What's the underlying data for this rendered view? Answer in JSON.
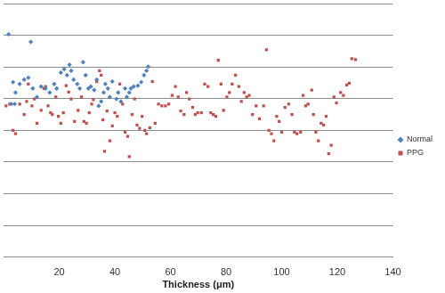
{
  "chart_data": {
    "type": "scatter",
    "x_label": "Thickness (μm)",
    "xlim": [
      0,
      140
    ],
    "xticks": [
      20,
      40,
      60,
      80,
      100,
      120,
      140
    ],
    "ylim": [
      0,
      8
    ],
    "yticks": [
      0,
      1,
      2,
      3,
      4,
      5,
      6,
      7,
      8
    ],
    "tick_labels": "x",
    "grid": true,
    "legend": "right",
    "series": [
      {
        "name": "Normal",
        "color": "#4f81bd",
        "marker": "diamond",
        "x": [
          1.8,
          9.8,
          3.4,
          4.3,
          2.8,
          5.8,
          7.4,
          8.9,
          10.5,
          12.0,
          13.5,
          15.1,
          16.6,
          18.2,
          19.1,
          20.6,
          21.8,
          22.8,
          23.7,
          24.3,
          25.2,
          26.5,
          27.4,
          28.6,
          29.5,
          30.5,
          31.4,
          32.6,
          33.5,
          34.2,
          35.1,
          36.0,
          36.6,
          37.5,
          38.2,
          39.1,
          40.6,
          41.2,
          42.2,
          43.7,
          44.3,
          45.2,
          45.8,
          46.8,
          48.3,
          49.5,
          50.5,
          51.4,
          52.0,
          4.0
        ],
        "values": [
          7.03,
          6.79,
          5.52,
          5.19,
          4.83,
          5.46,
          5.6,
          5.66,
          5.32,
          5.05,
          5.38,
          5.32,
          5.19,
          5.46,
          5.32,
          5.82,
          5.93,
          5.74,
          6.07,
          5.88,
          5.6,
          5.46,
          5.32,
          6.15,
          5.74,
          5.32,
          5.38,
          5.27,
          5.6,
          4.77,
          4.91,
          5.19,
          5.46,
          5.32,
          5.05,
          5.54,
          4.99,
          5.19,
          4.91,
          5.32,
          5.05,
          5.19,
          5.32,
          5.38,
          5.41,
          5.52,
          5.74,
          5.88,
          6.01,
          4.83
        ]
      },
      {
        "name": "PPG",
        "color": "#c0504d",
        "marker": "square",
        "x": [
          0.9,
          2.2,
          3.4,
          4.3,
          5.8,
          7.4,
          8.3,
          8.9,
          10.2,
          11.1,
          12.0,
          13.5,
          14.5,
          15.1,
          16.0,
          16.9,
          17.5,
          18.8,
          19.7,
          20.6,
          21.5,
          22.5,
          23.4,
          24.3,
          25.5,
          26.8,
          28.0,
          28.9,
          29.8,
          30.8,
          31.7,
          32.3,
          33.5,
          34.5,
          35.1,
          35.7,
          36.3,
          37.2,
          38.2,
          39.1,
          40.0,
          40.9,
          41.8,
          42.8,
          43.7,
          44.6,
          45.2,
          46.2,
          47.1,
          48.0,
          48.9,
          49.8,
          50.8,
          51.4,
          52.6,
          53.5,
          54.5,
          55.7,
          56.9,
          58.2,
          59.4,
          60.6,
          61.8,
          62.8,
          63.7,
          64.9,
          65.8,
          66.8,
          68.0,
          68.9,
          69.8,
          71.1,
          72.3,
          73.5,
          74.5,
          75.4,
          76.3,
          77.2,
          78.2,
          79.1,
          80.3,
          81.2,
          82.2,
          83.4,
          84.6,
          85.5,
          86.5,
          87.4,
          88.3,
          89.5,
          90.8,
          92.0,
          93.5,
          94.5,
          95.4,
          96.3,
          97.2,
          98.2,
          99.1,
          100.0,
          101.2,
          102.5,
          103.7,
          104.6,
          105.5,
          106.8,
          107.7,
          108.6,
          109.5,
          110.8,
          111.4,
          112.3,
          113.2,
          114.2,
          115.1,
          116.0,
          116.9,
          117.8,
          118.8,
          119.7,
          121.2,
          122.2,
          123.4,
          124.3,
          125.2,
          126.5
        ],
        "values": [
          4.77,
          4.83,
          4.0,
          3.89,
          4.83,
          4.5,
          4.91,
          5.46,
          4.77,
          4.99,
          4.22,
          4.63,
          5.32,
          5.38,
          4.77,
          4.55,
          4.5,
          5.05,
          4.44,
          4.22,
          4.55,
          5.41,
          5.21,
          4.99,
          4.28,
          4.63,
          5.05,
          4.28,
          4.22,
          4.55,
          4.83,
          4.97,
          5.54,
          5.88,
          5.74,
          4.33,
          3.34,
          4.61,
          3.67,
          4.14,
          4.55,
          4.44,
          5.46,
          4.83,
          3.94,
          3.81,
          3.17,
          4.5,
          4.99,
          4.17,
          4.06,
          4.44,
          4.0,
          3.89,
          4.08,
          5.54,
          4.22,
          4.83,
          4.77,
          4.77,
          4.83,
          5.1,
          5.38,
          5.05,
          4.61,
          4.5,
          5.19,
          4.99,
          4.72,
          4.5,
          4.55,
          4.55,
          5.46,
          5.38,
          4.55,
          4.5,
          4.44,
          6.21,
          5.46,
          4.63,
          5.05,
          5.19,
          5.46,
          5.74,
          5.38,
          4.91,
          5.19,
          5.05,
          5.1,
          4.5,
          4.77,
          4.36,
          4.77,
          6.54,
          4.0,
          3.89,
          3.67,
          4.44,
          4.28,
          3.94,
          4.72,
          4.83,
          4.5,
          3.94,
          3.89,
          3.94,
          5.1,
          4.77,
          4.83,
          5.27,
          4.5,
          3.94,
          3.67,
          4.22,
          4.17,
          4.44,
          3.26,
          3.53,
          5.05,
          4.86,
          5.19,
          5.1,
          5.43,
          5.49,
          6.26,
          6.23
        ]
      }
    ]
  }
}
